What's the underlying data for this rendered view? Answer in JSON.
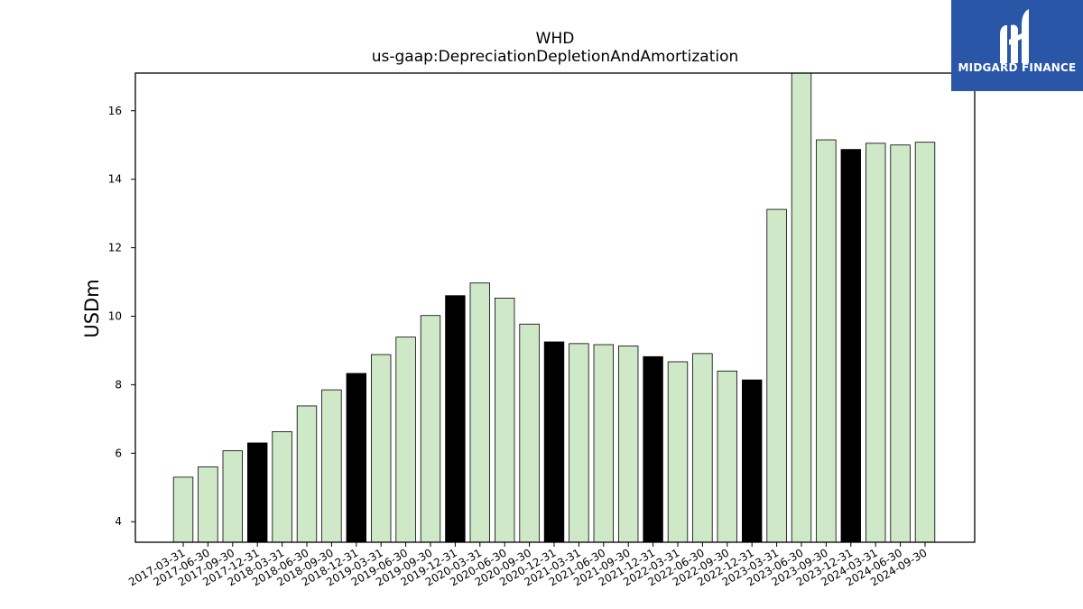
{
  "chart_data": {
    "type": "bar",
    "title": "WHD",
    "subtitle": "us-gaap:DepreciationDepletionAndAmortization",
    "ylabel": "USDm",
    "xlabel": "",
    "ylim": [
      3.4,
      17.1
    ],
    "yticks": [
      4,
      6,
      8,
      10,
      12,
      14,
      16
    ],
    "grid": false,
    "colors": {
      "quarter": "#cfe9c8",
      "year_end": "#000000",
      "edge": "#000000"
    },
    "categories": [
      "2017-03-31",
      "2017-06-30",
      "2017-09-30",
      "2017-12-31",
      "2018-03-31",
      "2018-06-30",
      "2018-09-30",
      "2018-12-31",
      "2019-03-31",
      "2019-06-30",
      "2019-09-30",
      "2019-12-31",
      "2020-03-31",
      "2020-06-30",
      "2020-09-30",
      "2020-12-31",
      "2021-03-31",
      "2021-06-30",
      "2021-09-30",
      "2021-12-31",
      "2022-03-31",
      "2022-06-30",
      "2022-09-30",
      "2022-12-31",
      "2023-03-31",
      "2023-06-30",
      "2023-09-30",
      "2023-12-31",
      "2024-03-31",
      "2024-06-30",
      "2024-09-30"
    ],
    "values": [
      5.3,
      5.6,
      6.07,
      6.3,
      6.63,
      7.38,
      7.85,
      8.33,
      8.88,
      9.39,
      10.02,
      10.6,
      10.97,
      10.53,
      9.77,
      9.25,
      9.2,
      9.17,
      9.13,
      8.82,
      8.67,
      8.91,
      8.4,
      8.14,
      13.12,
      17.1,
      15.15,
      14.87,
      15.05,
      15.0,
      15.08
    ]
  },
  "logo": {
    "text": "MIDGARD FINANCE"
  }
}
